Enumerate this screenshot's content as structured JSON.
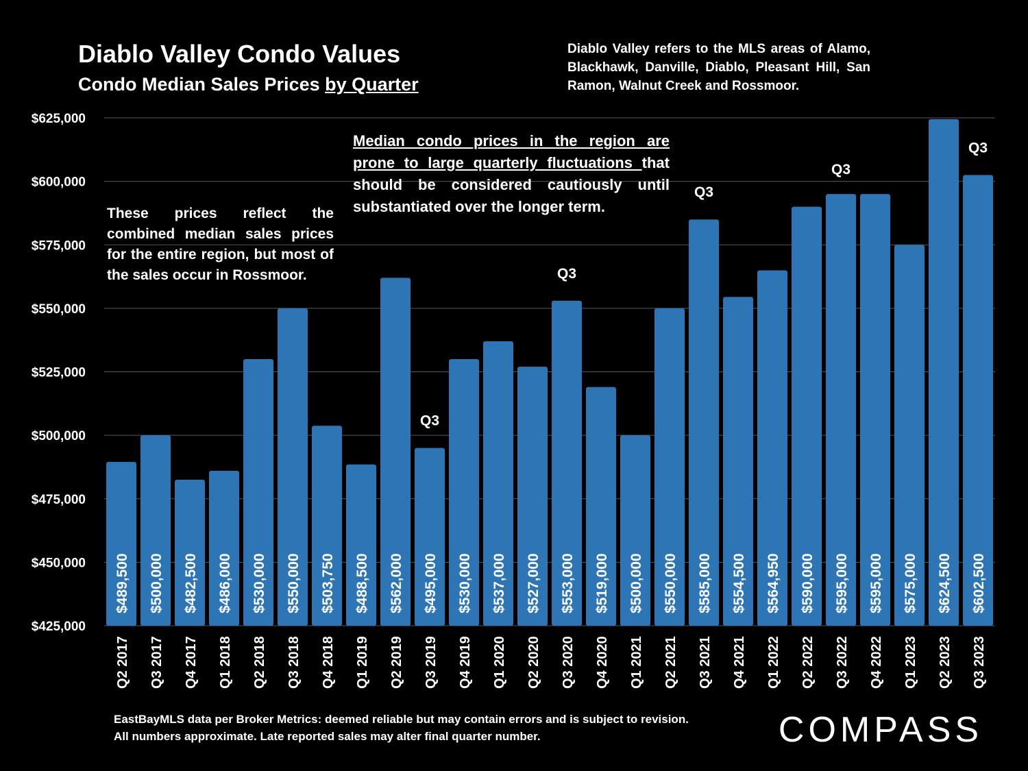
{
  "header": {
    "title": "Diablo Valley Condo Values",
    "subtitle_prefix": "Condo Median Sales Prices ",
    "subtitle_underlined": "by Quarter"
  },
  "region_note": "Diablo Valley refers to the MLS areas of Alamo, Blackhawk, Danville, Diablo, Pleasant Hill, San Ramon, Walnut Creek and Rossmoor.",
  "note_left": "These prices reflect the combined median sales prices for the entire region, but most of the sales occur in Rossmoor.",
  "note_center": {
    "underlined": "Median condo prices in the region are prone to large quarterly fluctuations ",
    "rest": "that should be considered cautiously until substantiated over the longer term."
  },
  "footer": " EastBayMLS data per Broker Metrics:  deemed reliable but may contain errors and is subject to revision. All numbers approximate. Late reported sales may alter final quarter number.",
  "logo_text": "COMPASS",
  "colors": {
    "background": "#000000",
    "bar": "#2E75B6",
    "text": "#FFFFFF",
    "grid": "#595959"
  },
  "chart_data": {
    "type": "bar",
    "title": "Diablo Valley Condo Values",
    "ylim": [
      425000,
      625000
    ],
    "yticks": [
      425000,
      450000,
      475000,
      500000,
      525000,
      550000,
      575000,
      600000,
      625000
    ],
    "ytick_labels": [
      "$425,000",
      "$450,000",
      "$475,000",
      "$500,000",
      "$525,000",
      "$550,000",
      "$575,000",
      "$600,000",
      "$625,000"
    ],
    "grid": true,
    "categories": [
      "Q2 2017",
      "Q3 2017",
      "Q4 2017",
      "Q1 2018",
      "Q2 2018",
      "Q3 2018",
      "Q4 2018",
      "Q1 2019",
      "Q2 2019",
      "Q3 2019",
      "Q4 2019",
      "Q1 2020",
      "Q2 2020",
      "Q3 2020",
      "Q4 2020",
      "Q1 2021",
      "Q2 2021",
      "Q3 2021",
      "Q4 2021",
      "Q1 2022",
      "Q2 2022",
      "Q3 2022",
      "Q4 2022",
      "Q1 2023",
      "Q2 2023",
      "Q3 2023"
    ],
    "values": [
      489500,
      500000,
      482500,
      486000,
      530000,
      550000,
      503750,
      488500,
      562000,
      495000,
      530000,
      537000,
      527000,
      553000,
      519000,
      500000,
      550000,
      585000,
      554500,
      564950,
      590000,
      595000,
      595000,
      575000,
      624500,
      602500
    ],
    "value_labels": [
      "$489,500",
      "$500,000",
      "$482,500",
      "$486,000",
      "$530,000",
      "$550,000",
      "$503,750",
      "$488,500",
      "$562,000",
      "$495,000",
      "$530,000",
      "$537,000",
      "$527,000",
      "$553,000",
      "$519,000",
      "$500,000",
      "$550,000",
      "$585,000",
      "$554,500",
      "$564,950",
      "$590,000",
      "$595,000",
      "$595,000",
      "$575,000",
      "$624,500",
      "$602,500"
    ],
    "annotations": [
      {
        "category": "Q3 2019",
        "text": "Q3"
      },
      {
        "category": "Q3 2020",
        "text": "Q3"
      },
      {
        "category": "Q3 2021",
        "text": "Q3"
      },
      {
        "category": "Q3 2022",
        "text": "Q3"
      },
      {
        "category": "Q3 2023",
        "text": "Q3"
      }
    ]
  }
}
